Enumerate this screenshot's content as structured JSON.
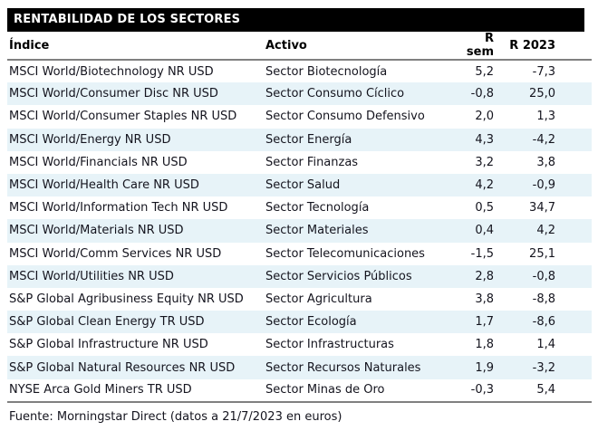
{
  "title_bar": {
    "title": "RENTABILIDAD DE LOS SECTORES"
  },
  "table": {
    "headers": [
      "Índice",
      "Activo",
      "R sem",
      "R 2023"
    ],
    "rows": [
      {
        "indice": "MSCI World/Biotechnology NR USD",
        "activo": "Sector Biotecnología",
        "r_sem": "5,2",
        "r_2023": "-7,3"
      },
      {
        "indice": "MSCI World/Consumer Disc NR USD",
        "activo": "Sector Consumo Cíclico",
        "r_sem": "-0,8",
        "r_2023": "25,0"
      },
      {
        "indice": "MSCI World/Consumer Staples NR USD",
        "activo": "Sector Consumo Defensivo",
        "r_sem": "2,0",
        "r_2023": "1,3"
      },
      {
        "indice": "MSCI World/Energy NR USD",
        "activo": "Sector Energía",
        "r_sem": "4,3",
        "r_2023": "-4,2"
      },
      {
        "indice": "MSCI World/Financials NR USD",
        "activo": "Sector Finanzas",
        "r_sem": "3,2",
        "r_2023": "3,8"
      },
      {
        "indice": "MSCI World/Health Care NR USD",
        "activo": "Sector Salud",
        "r_sem": "4,2",
        "r_2023": "-0,9"
      },
      {
        "indice": "MSCI World/Information Tech NR USD",
        "activo": "Sector Tecnología",
        "r_sem": "0,5",
        "r_2023": "34,7"
      },
      {
        "indice": "MSCI World/Materials NR USD",
        "activo": "Sector Materiales",
        "r_sem": "0,4",
        "r_2023": "4,2"
      },
      {
        "indice": "MSCI World/Comm Services NR USD",
        "activo": "Sector Telecomunicaciones",
        "r_sem": "-1,5",
        "r_2023": "25,1"
      },
      {
        "indice": "MSCI World/Utilities NR USD",
        "activo": "Sector Servicios Públicos",
        "r_sem": "2,8",
        "r_2023": "-0,8"
      },
      {
        "indice": "S&P Global Agribusiness Equity NR USD",
        "activo": "Sector Agricultura",
        "r_sem": "3,8",
        "r_2023": "-8,8"
      },
      {
        "indice": "S&P Global Clean Energy TR USD",
        "activo": "Sector Ecología",
        "r_sem": "1,7",
        "r_2023": "-8,6"
      },
      {
        "indice": "S&P Global Infrastructure NR USD",
        "activo": "Sector Infrastructuras",
        "r_sem": "1,8",
        "r_2023": "1,4"
      },
      {
        "indice": "S&P Global Natural Resources NR USD",
        "activo": "Sector Recursos Naturales",
        "r_sem": "1,9",
        "r_2023": "-3,2"
      },
      {
        "indice": "NYSE Arca Gold Miners TR USD",
        "activo": "Sector Minas de Oro",
        "r_sem": "-0,3",
        "r_2023": "5,4"
      }
    ]
  },
  "footer": {
    "source": "Fuente: Morningstar Direct (datos a 21/7/2023 en euros)"
  },
  "colors": {
    "title_bar_bg": "#000000",
    "title_bar_text": "#ffffff",
    "alt_row_bg": "#e7f3f8",
    "rule_line": "#808080",
    "body_text": "#14141e"
  },
  "chart_data": {
    "type": "table",
    "title": "RENTABILIDAD DE LOS SECTORES",
    "columns": [
      "Índice",
      "Activo",
      "R sem",
      "R 2023"
    ],
    "rows": [
      [
        "MSCI World/Biotechnology NR USD",
        "Sector Biotecnología",
        5.2,
        -7.3
      ],
      [
        "MSCI World/Consumer Disc NR USD",
        "Sector Consumo Cíclico",
        -0.8,
        25.0
      ],
      [
        "MSCI World/Consumer Staples NR USD",
        "Sector Consumo Defensivo",
        2.0,
        1.3
      ],
      [
        "MSCI World/Energy NR USD",
        "Sector Energía",
        4.3,
        -4.2
      ],
      [
        "MSCI World/Financials NR USD",
        "Sector Finanzas",
        3.2,
        3.8
      ],
      [
        "MSCI World/Health Care NR USD",
        "Sector Salud",
        4.2,
        -0.9
      ],
      [
        "MSCI World/Information Tech NR USD",
        "Sector Tecnología",
        0.5,
        34.7
      ],
      [
        "MSCI World/Materials NR USD",
        "Sector Materiales",
        0.4,
        4.2
      ],
      [
        "MSCI World/Comm Services NR USD",
        "Sector Telecomunicaciones",
        -1.5,
        25.1
      ],
      [
        "MSCI World/Utilities NR USD",
        "Sector Servicios Públicos",
        2.8,
        -0.8
      ],
      [
        "S&P Global Agribusiness Equity NR USD",
        "Sector Agricultura",
        3.8,
        -8.8
      ],
      [
        "S&P Global Clean Energy TR USD",
        "Sector Ecología",
        1.7,
        -8.6
      ],
      [
        "S&P Global Infrastructure NR USD",
        "Sector Infrastructuras",
        1.8,
        1.4
      ],
      [
        "S&P Global Natural Resources NR USD",
        "Sector Recursos Naturales",
        1.9,
        -3.2
      ],
      [
        "NYSE Arca Gold Miners TR USD",
        "Sector Minas de Oro",
        -0.3,
        5.4
      ]
    ],
    "notes": "Fuente: Morningstar Direct (datos a 21/7/2023 en euros)",
    "decimal_separator": ","
  }
}
